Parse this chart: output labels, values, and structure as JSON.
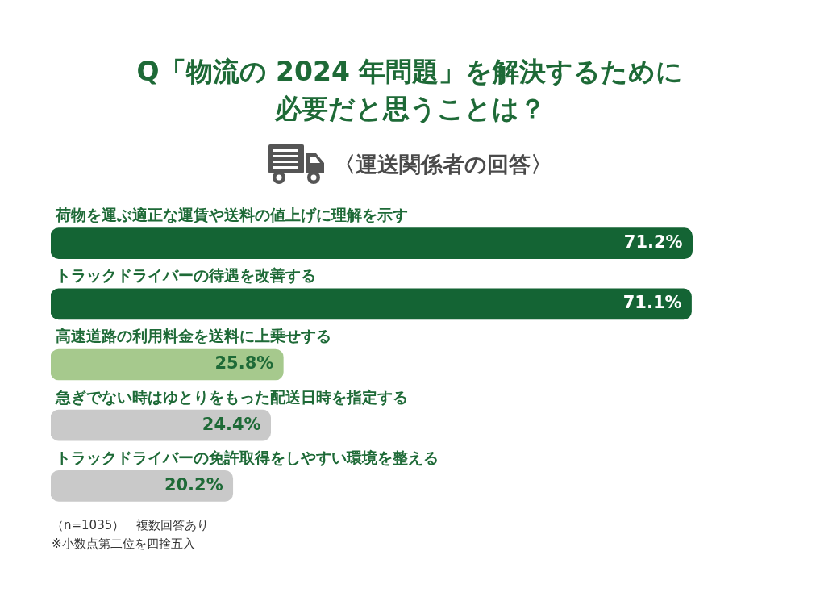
{
  "chart_data": {
    "type": "bar",
    "orientation": "horizontal",
    "title": "Q「物流の 2024 年問題」を解決するために必要だと思うことは？",
    "subtitle": "〈運送関係者の回答〉",
    "categories": [
      "荷物を運ぶ適正な運賃や送料の値上げに理解を示す",
      "トラックドライバーの待遇を改善する",
      "高速道路の利用料金を送料に上乗せする",
      "急ぎでない時はゆとりをもった配送日時を指定する",
      "トラックドライバーの免許取得をしやすい環境を整える"
    ],
    "values": [
      71.2,
      71.1,
      25.8,
      24.4,
      20.2
    ],
    "colors": [
      "#146434",
      "#146434",
      "#a6c98d",
      "#c9c9c9",
      "#c9c9c9"
    ],
    "value_labels": [
      "71.2%",
      "71.1%",
      "25.8%",
      "24.4%",
      "20.2%"
    ],
    "annotations": [
      "（n=1035）　複数回答あり",
      "※小数点第二位を四捨五入"
    ]
  }
}
